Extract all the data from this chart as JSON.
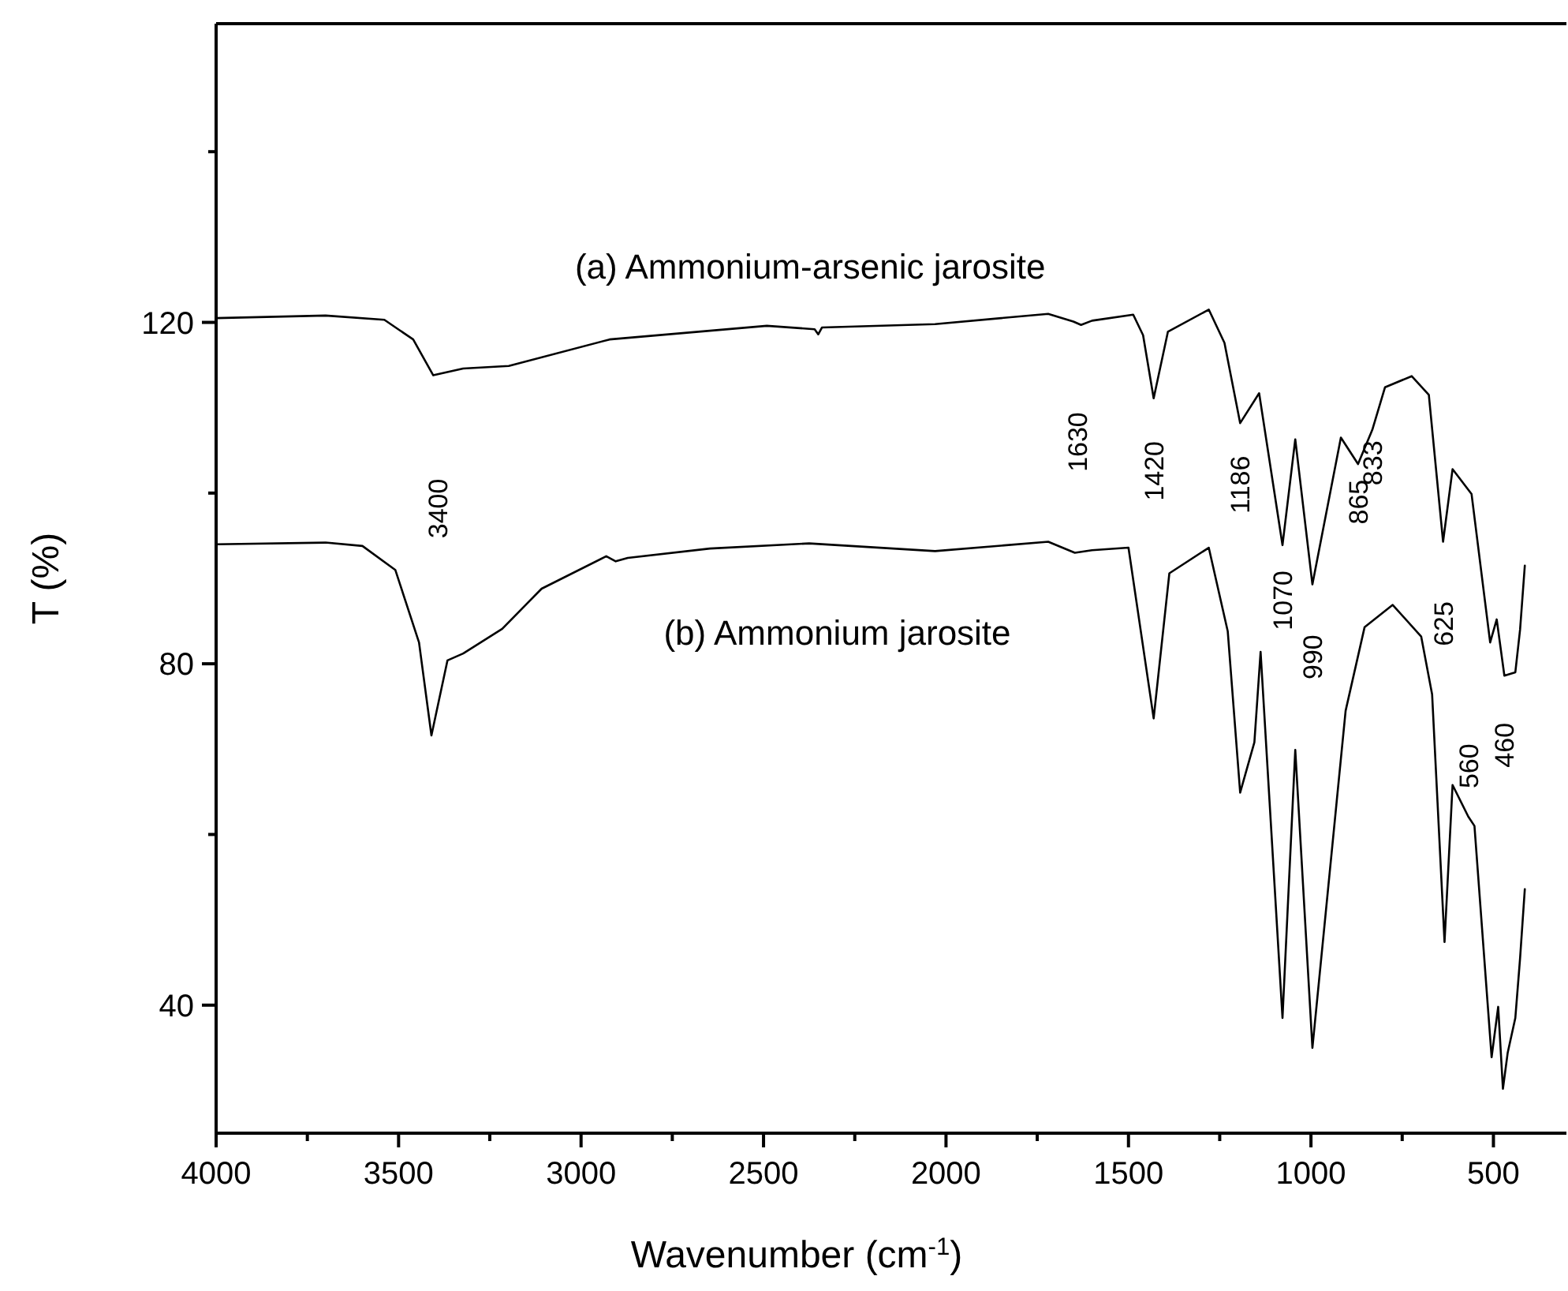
{
  "chart_data": {
    "type": "line",
    "xlabel": "Wavenumber (cm$^{-1}$)",
    "ylabel": "T (%)",
    "xlim": [
      4000,
      300
    ],
    "ylim": [
      25,
      155
    ],
    "xticks": [
      4000,
      {
        "value": 3750,
        "label": null
      },
      3500,
      {
        "value": 3250,
        "label": null
      },
      3000,
      {
        "value": 2750,
        "label": null
      },
      2500,
      {
        "value": 2250,
        "label": null
      },
      2000,
      {
        "value": 1750,
        "label": null
      },
      1500,
      {
        "value": 1250,
        "label": null
      },
      1000,
      {
        "value": 750,
        "label": null
      },
      500
    ],
    "yticks": [
      40,
      {
        "value": 60,
        "label": null
      },
      80,
      {
        "value": 100,
        "label": null
      },
      120,
      {
        "value": 140,
        "label": null
      }
    ],
    "grid": false,
    "legend": false,
    "marker": "none",
    "line_style": "solid",
    "series": [
      {
        "name": "(a) Ammonium-arsenic jarosite",
        "color": "#000000",
        "x": [
          4000,
          3700,
          3539,
          3460,
          3405,
          3323,
          3198,
          2922,
          2491,
          2360,
          2350,
          2340,
          2030,
          1720,
          1651,
          1630,
          1600,
          1487,
          1460,
          1431,
          1392,
          1280,
          1237,
          1194,
          1142,
          1078,
          1043,
          996,
          918,
          871,
          832,
          797,
          724,
          677,
          638,
          612,
          560,
          509,
          491,
          470,
          440,
          427,
          414
        ],
        "values": [
          120.5,
          120.8,
          120.3,
          118,
          113.8,
          114.6,
          114.9,
          118,
          119.6,
          119.2,
          118.6,
          119.4,
          119.8,
          121,
          120.1,
          119.7,
          120.2,
          120.9,
          118.5,
          111.1,
          118.9,
          121.5,
          117.6,
          108.2,
          111.7,
          93.9,
          106.3,
          89.3,
          106.5,
          103.4,
          107.4,
          112.4,
          113.7,
          111.5,
          94.3,
          102.8,
          99.9,
          82.5,
          85.2,
          78.6,
          79,
          84,
          91.5
        ]
      },
      {
        "name": "(b) Ammonium jarosite",
        "color": "#000000",
        "x": [
          4000,
          3700,
          3599,
          3509,
          3444,
          3410,
          3366,
          3323,
          3216,
          3108,
          2931,
          2905,
          2872,
          2647,
          2375,
          2030,
          1720,
          1647,
          1600,
          1500,
          1431,
          1388,
          1280,
          1228,
          1194,
          1155,
          1138,
          1078,
          1043,
          996,
          905,
          853,
          776,
          698,
          668,
          634,
          612,
          569,
          552,
          505,
          487,
          474,
          461,
          440,
          427,
          414
        ],
        "values": [
          94,
          94.2,
          93.8,
          91,
          82.5,
          71.6,
          80.4,
          81.2,
          84.1,
          88.8,
          92.6,
          92,
          92.4,
          93.5,
          94.1,
          93.2,
          94.3,
          93,
          93.3,
          93.6,
          73.6,
          90.6,
          93.6,
          83.8,
          64.9,
          70.8,
          81.4,
          38.5,
          69.9,
          35,
          74.5,
          84.3,
          86.9,
          83.2,
          76.4,
          47.4,
          65.8,
          62.1,
          61,
          33.9,
          39.8,
          30.2,
          34.4,
          38.5,
          45.5,
          53.6
        ]
      }
    ],
    "annotations": [
      "3400",
      "1630",
      {
        "text": "1420",
        "x": 1431,
        "y": 111.1
      },
      {
        "text": "1186",
        "x": 1194,
        "y": 108.2
      },
      {
        "text": "1070",
        "x": 1078,
        "y": 93.9
      },
      {
        "text": "990",
        "x": 996,
        "y": 89.3
      },
      {
        "text": "865",
        "x": 871,
        "y": 103.4
      },
      {
        "text": "833",
        "x": 832,
        "y": 107.4
      },
      {
        "text": "625",
        "x": 638,
        "y": 94.3
      },
      {
        "text": "560",
        "x": 569,
        "y": 62.1
      },
      {
        "text": "460",
        "x": 470,
        "y": 78.6
      }
    ]
  }
}
